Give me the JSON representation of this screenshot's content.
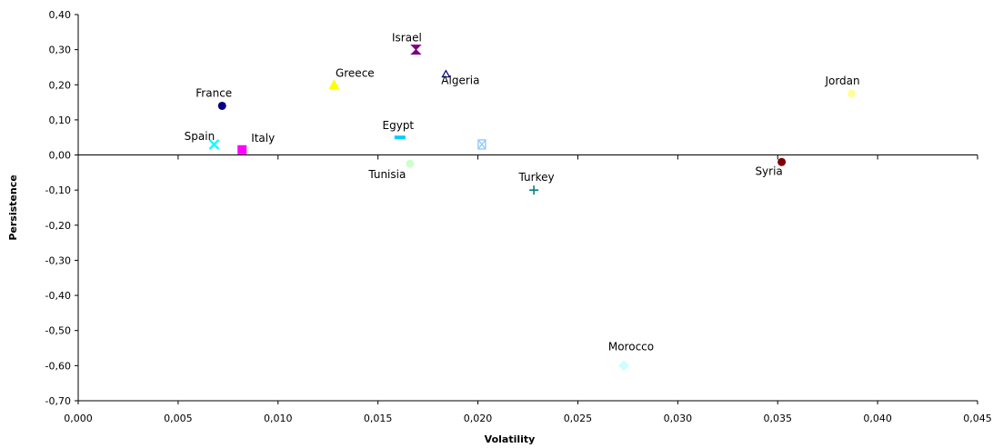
{
  "chart_data": {
    "type": "scatter",
    "title": "",
    "xlabel": "Volatility",
    "ylabel": "Persistence",
    "xlim": [
      0,
      0.045
    ],
    "ylim": [
      -0.7,
      0.4
    ],
    "x_ticks": [
      0,
      0.005,
      0.01,
      0.015,
      0.02,
      0.025,
      0.03,
      0.035,
      0.04,
      0.045
    ],
    "y_ticks": [
      0.4,
      0.3,
      0.2,
      0.1,
      0.0,
      -0.1,
      -0.2,
      -0.3,
      -0.4,
      -0.5,
      -0.6,
      -0.7
    ],
    "x_tick_labels": [
      "0,000",
      "0,005",
      "0,010",
      "0,015",
      "0,020",
      "0,025",
      "0,030",
      "0,035",
      "0,040",
      "0,045"
    ],
    "y_tick_labels": [
      "0,40",
      "0,30",
      "0,20",
      "0,10",
      "0,00",
      "-0,10",
      "-0,20",
      "-0,30",
      "-0,40",
      "-0,50",
      "-0,60",
      "-0,70"
    ],
    "grid": false,
    "legend": "none",
    "points": [
      {
        "label": "Israel",
        "x": 0.0169,
        "y": 0.3,
        "marker": "hourglass",
        "color": "#800080"
      },
      {
        "label": "Algeria",
        "x": 0.0184,
        "y": 0.23,
        "marker": "triangle-outline",
        "color": "#000080"
      },
      {
        "label": "Greece",
        "x": 0.0128,
        "y": 0.2,
        "marker": "triangle",
        "color": "#ffff00"
      },
      {
        "label": "France",
        "x": 0.0072,
        "y": 0.14,
        "marker": "circle",
        "color": "#000080"
      },
      {
        "label": "Jordan",
        "x": 0.0387,
        "y": 0.175,
        "marker": "circle",
        "color": "#ffff99"
      },
      {
        "label": "Egypt",
        "x": 0.0161,
        "y": 0.05,
        "marker": "dash",
        "color": "#00ccff"
      },
      {
        "label": "Spain",
        "x": 0.0068,
        "y": 0.03,
        "marker": "x",
        "color": "#00ffff"
      },
      {
        "label": "Italy",
        "x": 0.0082,
        "y": 0.015,
        "marker": "square",
        "color": "#ff00ff"
      },
      {
        "label": "",
        "x": 0.0202,
        "y": 0.03,
        "marker": "x-box",
        "color": "#99ccff"
      },
      {
        "label": "Tunisia",
        "x": 0.0166,
        "y": -0.025,
        "marker": "circle",
        "color": "#ccffcc"
      },
      {
        "label": "Syria",
        "x": 0.0352,
        "y": -0.02,
        "marker": "circle",
        "color": "#800000"
      },
      {
        "label": "Turkey",
        "x": 0.0228,
        "y": -0.1,
        "marker": "plus",
        "color": "#008080"
      },
      {
        "label": "Morocco",
        "x": 0.0273,
        "y": -0.6,
        "marker": "diamond",
        "color": "#ccffff"
      }
    ]
  }
}
